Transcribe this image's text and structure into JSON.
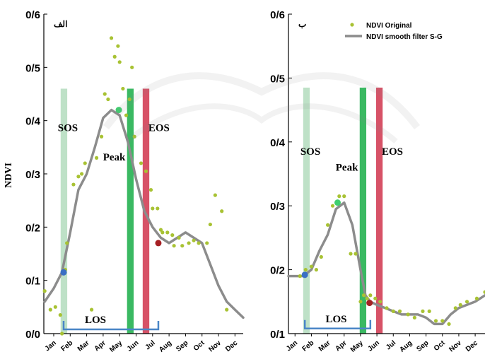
{
  "colors": {
    "axis": "#000000",
    "ndvi_original": "#a8c233",
    "ndvi_smooth": "#8c8c8c",
    "sos_band": "#b3dcbd",
    "peak_band": "#2fb55a",
    "eos_band": "#d5495f",
    "los_bracket": "#4a86c7",
    "sos_point": "#3a6fc4",
    "peak_point": "#3fcf6f",
    "eos_point": "#a62024",
    "watermark": "#888888"
  },
  "figure": {
    "y_axis_label": "NDVI",
    "legend": {
      "original": "NDVI Original",
      "smooth": "NDVI smooth filter S-G"
    }
  },
  "chart_data": [
    {
      "type": "line",
      "panel_label": "الف",
      "months": [
        "Jan",
        "Feb",
        "Mar",
        "Apr",
        "May",
        "Jun",
        "Jul",
        "Aug",
        "Sep",
        "Oct",
        "Nov",
        "Dec"
      ],
      "ylim": [
        0,
        0.6
      ],
      "yticks": [
        "0/0",
        "0/1",
        "0/2",
        "0/3",
        "0/4",
        "0/5",
        "0/6"
      ],
      "yticks_values": [
        0,
        0.1,
        0.2,
        0.3,
        0.4,
        0.5,
        0.6
      ],
      "xlim": [
        0.4,
        12.5
      ],
      "series": [
        {
          "name": "NDVI Original",
          "style": "points",
          "x": [
            0.45,
            0.8,
            1.1,
            1.4,
            1.5,
            1.7,
            1.8,
            2.2,
            2.5,
            2.7,
            2.9,
            3.3,
            3.6,
            3.9,
            4.1,
            4.3,
            4.5,
            4.7,
            4.9,
            5.0,
            5.2,
            5.4,
            5.6,
            5.75,
            5.9,
            6.3,
            6.6,
            6.9,
            7.0,
            7.3,
            7.5,
            7.6,
            7.9,
            8.2,
            8.3,
            8.6,
            8.8,
            9.2,
            9.5,
            9.8,
            10.3,
            10.5,
            10.8,
            11.2,
            11.5
          ],
          "y": [
            0.08,
            0.045,
            0.05,
            0.035,
            0.0,
            0.12,
            0.17,
            0.28,
            0.295,
            0.3,
            0.32,
            0.045,
            0.33,
            0.37,
            0.45,
            0.44,
            0.555,
            0.52,
            0.54,
            0.51,
            0.46,
            0.41,
            0.44,
            0.5,
            0.37,
            0.32,
            0.305,
            0.27,
            0.235,
            0.235,
            0.195,
            0.19,
            0.19,
            0.185,
            0.165,
            0.18,
            0.165,
            0.17,
            0.175,
            0.17,
            0.17,
            0.205,
            0.26,
            0.23,
            0.045
          ]
        },
        {
          "name": "NDVI smooth filter S-G",
          "style": "line",
          "x": [
            0.45,
            1.0,
            1.5,
            2.0,
            2.5,
            3.0,
            3.5,
            4.0,
            4.5,
            5.0,
            5.5,
            6.0,
            6.5,
            7.0,
            7.5,
            8.0,
            8.5,
            9.0,
            9.5,
            10.0,
            10.5,
            11.0,
            11.5,
            12.0,
            12.5
          ],
          "y": [
            0.06,
            0.085,
            0.115,
            0.19,
            0.27,
            0.3,
            0.35,
            0.405,
            0.42,
            0.41,
            0.36,
            0.29,
            0.23,
            0.2,
            0.18,
            0.17,
            0.18,
            0.19,
            0.18,
            0.17,
            0.13,
            0.09,
            0.06,
            0.045,
            0.03
          ]
        }
      ],
      "phenology": {
        "sos": {
          "label": "SOS",
          "band_x": [
            1.42,
            1.82
          ],
          "band_top": 0.46,
          "point": [
            1.6,
            0.115
          ]
        },
        "peak": {
          "label": "Peak",
          "band_x": [
            5.45,
            5.85
          ],
          "band_top": 0.46,
          "point": [
            4.95,
            0.42
          ]
        },
        "eos": {
          "label": "EOS",
          "band_x": [
            6.4,
            6.8
          ],
          "band_top": 0.46,
          "point": [
            7.35,
            0.17
          ]
        },
        "los": {
          "label": "LOS",
          "from": 1.6,
          "to": 7.35,
          "y": 0.008
        }
      }
    },
    {
      "type": "line",
      "panel_label": "ب",
      "months": [
        "Jan",
        "Feb",
        "Mar",
        "Apr",
        "May",
        "Jun",
        "Jul",
        "Aug",
        "Sep",
        "Oct",
        "Nov",
        "Dec"
      ],
      "ylim": [
        0.1,
        0.6
      ],
      "yticks": [
        "0/1",
        "0/2",
        "0/3",
        "0/4",
        "0/5",
        "0/6"
      ],
      "yticks_values": [
        0.1,
        0.2,
        0.3,
        0.4,
        0.5,
        0.6
      ],
      "xlim": [
        0.6,
        12.6
      ],
      "series": [
        {
          "name": "NDVI Original",
          "style": "points",
          "x": [
            1.3,
            1.65,
            2.0,
            2.3,
            2.6,
            3.0,
            3.3,
            3.7,
            4.0,
            4.4,
            4.7,
            5.0,
            5.2,
            5.4,
            5.6,
            5.9,
            6.2,
            6.6,
            7.0,
            7.4,
            7.9,
            8.3,
            8.8,
            9.2,
            9.6,
            10.0,
            10.4,
            10.8,
            11.1,
            11.5,
            12.1,
            12.6
          ],
          "y": [
            0.19,
            0.2,
            0.205,
            0.2,
            0.22,
            0.27,
            0.3,
            0.315,
            0.315,
            0.225,
            0.225,
            0.15,
            0.16,
            0.155,
            0.16,
            0.155,
            0.15,
            0.14,
            0.135,
            0.135,
            0.13,
            0.125,
            0.135,
            0.135,
            0.12,
            0.12,
            0.115,
            0.14,
            0.145,
            0.15,
            0.155,
            0.165
          ]
        },
        {
          "name": "NDVI smooth filter S-G",
          "style": "line",
          "x": [
            0.6,
            1.0,
            1.5,
            2.0,
            2.5,
            3.0,
            3.5,
            4.0,
            4.5,
            5.0,
            5.3,
            5.6,
            6.0,
            6.5,
            7.0,
            7.5,
            8.0,
            8.5,
            9.0,
            9.5,
            10.0,
            10.5,
            11.0,
            11.5,
            12.0,
            12.6
          ],
          "y": [
            0.19,
            0.19,
            0.19,
            0.2,
            0.23,
            0.255,
            0.295,
            0.305,
            0.27,
            0.2,
            0.16,
            0.15,
            0.145,
            0.14,
            0.135,
            0.13,
            0.13,
            0.13,
            0.125,
            0.115,
            0.115,
            0.13,
            0.14,
            0.145,
            0.15,
            0.16
          ]
        }
      ],
      "phenology": {
        "sos": {
          "label": "SOS",
          "band_x": [
            1.5,
            1.9
          ],
          "band_top": 0.485,
          "point": [
            1.6,
            0.192
          ]
        },
        "peak": {
          "label": "Peak",
          "band_x": [
            4.95,
            5.35
          ],
          "band_top": 0.485,
          "point": [
            3.6,
            0.305
          ]
        },
        "eos": {
          "label": "EOS",
          "band_x": [
            5.95,
            6.35
          ],
          "band_top": 0.485,
          "point": [
            5.55,
            0.148
          ]
        },
        "los": {
          "label": "LOS",
          "from": 1.6,
          "to": 5.6,
          "y": 0.108
        }
      }
    }
  ]
}
